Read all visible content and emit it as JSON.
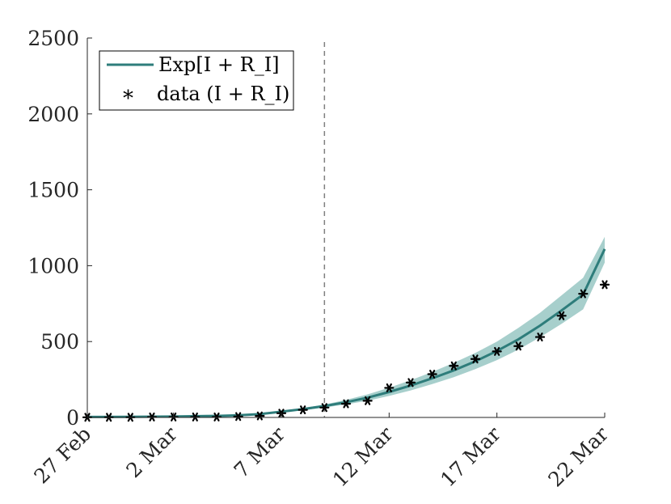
{
  "chart_data": {
    "type": "line",
    "title": "",
    "xlabel": "",
    "ylabel": "",
    "ylim": [
      0,
      2500
    ],
    "xlim_days": [
      0,
      24
    ],
    "yticks": [
      0,
      500,
      1000,
      1500,
      2000,
      2500
    ],
    "ytick_labels": [
      "0",
      "500",
      "1000",
      "1500",
      "2000",
      "2500"
    ],
    "xticks_days": [
      0,
      4,
      9,
      14,
      19,
      24
    ],
    "xtick_labels": [
      "27 Feb",
      "2 Mar",
      "7 Mar",
      "12 Mar",
      "17 Mar",
      "22 Mar"
    ],
    "vline_day": 11,
    "legend": {
      "position": "top-left",
      "model_label": "Exp[I + R_I]",
      "data_label": "data (I + R_I)"
    },
    "series": [
      {
        "name": "Exp[I + R_I]",
        "kind": "line",
        "color": "#2e7d7b",
        "band_color": "#5fa8a3",
        "x": [
          0,
          2,
          4,
          6,
          7,
          8,
          9,
          10,
          11,
          12,
          13,
          14,
          15,
          16,
          17,
          18,
          19,
          20,
          21,
          22,
          23,
          24
        ],
        "y": [
          3,
          4,
          6,
          10,
          14,
          22,
          38,
          55,
          75,
          100,
          130,
          168,
          210,
          258,
          310,
          370,
          438,
          515,
          605,
          705,
          810,
          1110
        ],
        "lower": [
          3,
          4,
          6,
          9,
          13,
          20,
          33,
          48,
          65,
          86,
          110,
          142,
          178,
          220,
          265,
          318,
          378,
          447,
          528,
          617,
          712,
          1020
        ],
        "upper": [
          3,
          4,
          6,
          11,
          16,
          25,
          43,
          62,
          85,
          116,
          152,
          196,
          245,
          300,
          360,
          425,
          500,
          590,
          690,
          805,
          920,
          1190
        ]
      },
      {
        "name": "data (I + R_I)",
        "kind": "scatter",
        "marker": "asterisk",
        "color": "#000000",
        "x": [
          0,
          1,
          2,
          3,
          4,
          5,
          6,
          7,
          8,
          9,
          10,
          11,
          12,
          13,
          14,
          15,
          16,
          17,
          18,
          19,
          20,
          21,
          22,
          23,
          24
        ],
        "y": [
          1,
          1,
          1,
          3,
          3,
          3,
          3,
          6,
          10,
          28,
          50,
          65,
          90,
          110,
          195,
          230,
          285,
          340,
          385,
          435,
          470,
          530,
          670,
          815,
          875
        ]
      }
    ]
  }
}
